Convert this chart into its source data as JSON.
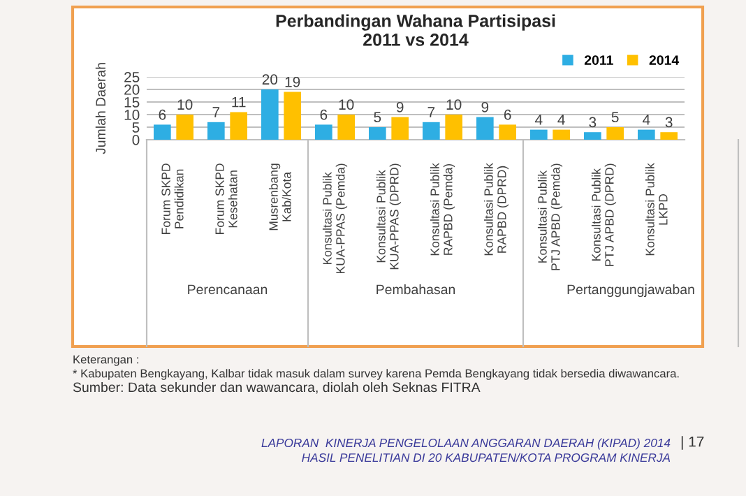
{
  "chart_data": {
    "type": "bar",
    "title": "Perbandingan Wahana Partisipasi\n2011 vs 2014",
    "ylabel": "Jumlah Daerah",
    "categories": [
      "Forum SKPD\nPendidikan",
      "Forum SKPD\nKesehatan",
      "Musrenbang\nKab/Kota",
      "Konsultasi Publik\nKUA-PPAS (Pemda)",
      "Konsultasi Publik\nKUA-PPAS (DPRD)",
      "Konsultasi Publik\nRAPBD (Pemda)",
      "Konsultasi Publik\nRAPBD (DPRD)",
      "Konsultasi Publik\nPTJ APBD (Pemda)",
      "Konsultasi Publik\nPTJ APBD (DPRD)",
      "Konsultasi Publik\nLKPD"
    ],
    "series": [
      {
        "name": "2011",
        "color": "#2eaee3",
        "values": [
          6,
          7,
          20,
          6,
          5,
          7,
          9,
          4,
          3,
          4
        ]
      },
      {
        "name": "2014",
        "color": "#ffc000",
        "values": [
          10,
          11,
          19,
          10,
          9,
          10,
          6,
          4,
          5,
          3
        ]
      }
    ],
    "ylim": [
      0,
      25
    ],
    "yticks": [
      0,
      5,
      10,
      15,
      20,
      25
    ],
    "grid": "y",
    "legend": "top right",
    "data_labels": true,
    "annotations": [
      "Perencanaan",
      "Pembahasan",
      "Pertanggungjawaban",
      "Keterangan :",
      "* Kabupaten Bengkayang, Kalbar tidak masuk dalam survey karena Pemda Bengkayang tidak bersedia diwawancara.",
      "Sumber: Data sekunder dan wawancara, diolah oleh Seknas FITRA",
      "LAPORAN  KINERJA PENGELOLAAN ANGGARAN DAERAH (KIPAD) 2014\nHASIL PENELITIAN DI 20 KABUPATEN/KOTA PROGRAM KINERJA",
      "| 17"
    ]
  }
}
